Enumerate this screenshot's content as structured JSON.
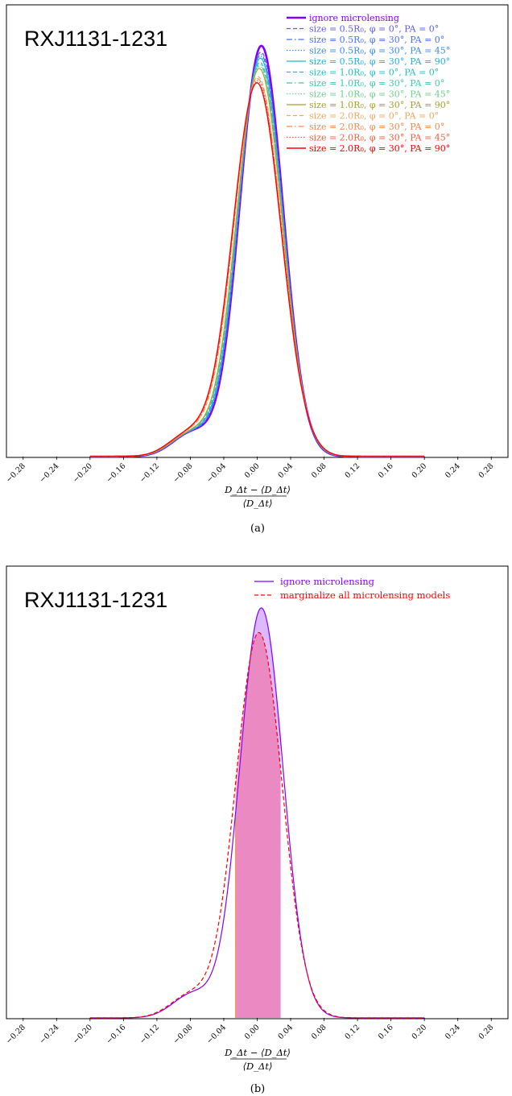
{
  "chart_data": [
    {
      "panel": "(a)",
      "type": "line",
      "object_label": "RXJ1131-1231",
      "xlabel_numerator": "D_Δt − ⟨D_Δt⟩",
      "xlabel_denominator": "⟨D_Δt⟩",
      "xlim": [
        -0.3,
        0.3
      ],
      "xticks": [
        -0.28,
        -0.24,
        -0.2,
        -0.16,
        -0.12,
        -0.08,
        -0.04,
        0.0,
        0.04,
        0.08,
        0.12,
        0.16,
        0.2,
        0.24,
        0.28
      ],
      "xtick_labels": [
        "−0.28",
        "−0.24",
        "−0.20",
        "−0.16",
        "−0.12",
        "−0.08",
        "−0.04",
        "0.00",
        "0.04",
        "0.08",
        "0.12",
        "0.16",
        "0.20",
        "0.24",
        "0.28"
      ],
      "y_ticks_shown": false,
      "legend_position": "top-right",
      "series": [
        {
          "name": "ignore microlensing",
          "color": "#7f00ff",
          "dash": "solid",
          "width": 2.6,
          "mu": 0.005,
          "sigma": 0.026,
          "peak": 1.0
        },
        {
          "name": "size = 0.5R₀, φ = 0°,   PA = 0°",
          "color": "#5b5cf6",
          "dash": "dashed",
          "width": 1.2,
          "mu": 0.0045,
          "sigma": 0.0263,
          "peak": 0.985
        },
        {
          "name": "size = 0.5R₀, φ = 30°, PA = 0°",
          "color": "#4a72f2",
          "dash": "dashdot",
          "width": 1.2,
          "mu": 0.0042,
          "sigma": 0.0265,
          "peak": 0.98
        },
        {
          "name": "size = 0.5R₀, φ = 30°, PA = 45°",
          "color": "#3a8cec",
          "dash": "dotted",
          "width": 1.2,
          "mu": 0.004,
          "sigma": 0.0266,
          "peak": 0.975
        },
        {
          "name": "size = 0.5R₀, φ = 30°, PA = 90°",
          "color": "#22b0d8",
          "dash": "solid",
          "width": 1.2,
          "mu": 0.0038,
          "sigma": 0.0268,
          "peak": 0.97
        },
        {
          "name": "size = 1.0R₀, φ = 0°,   PA = 0°",
          "color": "#22c2c0",
          "dash": "dashed",
          "width": 1.2,
          "mu": 0.0032,
          "sigma": 0.0271,
          "peak": 0.96
        },
        {
          "name": "size = 1.0R₀, φ = 30°, PA = 0°",
          "color": "#3ccba8",
          "dash": "dashdot",
          "width": 1.2,
          "mu": 0.003,
          "sigma": 0.0273,
          "peak": 0.955
        },
        {
          "name": "size = 1.0R₀, φ = 30°, PA = 45°",
          "color": "#6fcf8c",
          "dash": "dotted",
          "width": 1.2,
          "mu": 0.0028,
          "sigma": 0.0274,
          "peak": 0.95
        },
        {
          "name": "size = 1.0R₀, φ = 30°, PA = 90°",
          "color": "#a4a12c",
          "dash": "solid",
          "width": 1.2,
          "mu": 0.0025,
          "sigma": 0.0276,
          "peak": 0.945
        },
        {
          "name": "size = 2.0R₀, φ = 0°,   PA = 0°",
          "color": "#f2a65e",
          "dash": "dashed",
          "width": 1.2,
          "mu": 0.0008,
          "sigma": 0.0285,
          "peak": 0.925
        },
        {
          "name": "size = 2.0R₀, φ = 30°, PA = 0°",
          "color": "#f5894a",
          "dash": "dashdot",
          "width": 1.2,
          "mu": 0.0005,
          "sigma": 0.0287,
          "peak": 0.92
        },
        {
          "name": "size = 2.0R₀, φ = 30°, PA = 45°",
          "color": "#f55e38",
          "dash": "dotted",
          "width": 1.2,
          "mu": 0.0003,
          "sigma": 0.0289,
          "peak": 0.915
        },
        {
          "name": "size = 2.0R₀, φ = 30°, PA = 90°",
          "color": "#ff0000",
          "dash": "solid",
          "width": 1.4,
          "mu": -0.0003,
          "sigma": 0.029,
          "peak": 0.91
        }
      ]
    },
    {
      "panel": "(b)",
      "type": "area",
      "object_label": "RXJ1131-1231",
      "xlabel_numerator": "D_Δt − ⟨D_Δt⟩",
      "xlabel_denominator": "⟨D_Δt⟩",
      "xlim": [
        -0.3,
        0.3
      ],
      "xticks": [
        -0.28,
        -0.24,
        -0.2,
        -0.16,
        -0.12,
        -0.08,
        -0.04,
        0.0,
        0.04,
        0.08,
        0.12,
        0.16,
        0.2,
        0.24,
        0.28
      ],
      "xtick_labels": [
        "−0.28",
        "−0.24",
        "−0.20",
        "−0.16",
        "−0.12",
        "−0.08",
        "−0.04",
        "0.00",
        "0.04",
        "0.08",
        "0.12",
        "0.16",
        "0.20",
        "0.24",
        "0.28"
      ],
      "y_ticks_shown": false,
      "legend_position": "top-right",
      "shaded_interval": [
        -0.026,
        0.028
      ],
      "series": [
        {
          "name": "ignore microlensing",
          "color": "#7f00ff",
          "dash": "solid",
          "width": 1.2,
          "mu": 0.005,
          "sigma": 0.026,
          "peak": 1.0,
          "fill": "rgba(127,0,255,0.28)"
        },
        {
          "name": "marginalize all microlensing models",
          "color": "#ff0000",
          "dash": "dashed",
          "width": 1.2,
          "mu": 0.002,
          "sigma": 0.0278,
          "peak": 0.94,
          "fill": "rgba(255,80,120,0.45)"
        }
      ]
    }
  ],
  "captions": [
    "(a)",
    "(b)"
  ]
}
